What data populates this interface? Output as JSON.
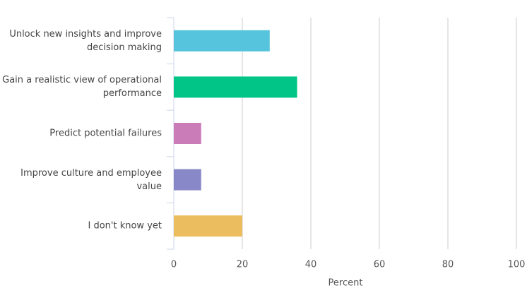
{
  "chart_data": {
    "type": "bar",
    "orientation": "horizontal",
    "categories": [
      "Unlock new insights and improve decision making",
      "Gain a realistic view of operational performance",
      "Predict potential failures",
      "Improve culture and employee value",
      "I don't know yet"
    ],
    "values": [
      28,
      36,
      8,
      8,
      20
    ],
    "colors": [
      "#56c4dc",
      "#00c586",
      "#c97cb8",
      "#8888c8",
      "#ecbd5f"
    ],
    "xlabel": "Percent",
    "xlim": [
      0,
      100
    ],
    "xticks": [
      0,
      20,
      40,
      60,
      80,
      100
    ],
    "grid": true
  }
}
